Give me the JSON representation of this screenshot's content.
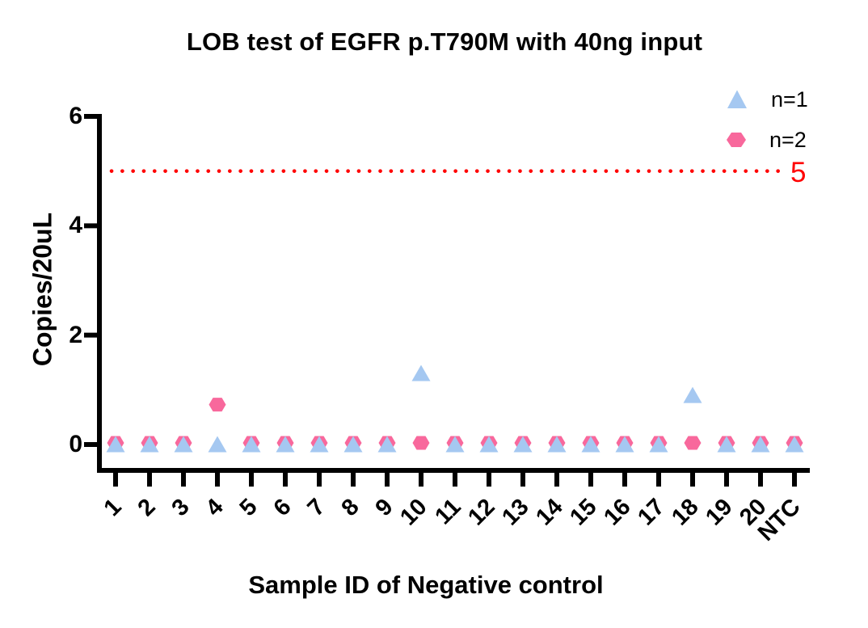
{
  "chart_data": {
    "type": "scatter",
    "title": "LOB test of EGFR p.T790M with 40ng input",
    "xlabel": "Sample ID of Negative control",
    "ylabel": "Copies/20uL",
    "categories": [
      "1",
      "2",
      "3",
      "4",
      "5",
      "6",
      "7",
      "8",
      "9",
      "10",
      "11",
      "12",
      "13",
      "14",
      "15",
      "16",
      "17",
      "18",
      "19",
      "20",
      "NTC"
    ],
    "yticks": [
      0,
      2,
      4,
      6
    ],
    "ylim": [
      0,
      6
    ],
    "grid": false,
    "legend_position": "top-right",
    "axis_color": "#000000",
    "series": [
      {
        "name": "n=1",
        "marker": "triangle",
        "color": "#a5c8f1",
        "values": [
          0,
          0,
          0,
          0,
          0,
          0,
          0,
          0,
          0,
          1.3,
          0,
          0,
          0,
          0,
          0,
          0,
          0,
          0.9,
          0,
          0,
          0
        ]
      },
      {
        "name": "n=2",
        "marker": "hexagon",
        "color": "#f8689c",
        "values": [
          0,
          0,
          0,
          0.7,
          0,
          0,
          0,
          0,
          0,
          0,
          0,
          0,
          0,
          0,
          0,
          0,
          0,
          0,
          0,
          0,
          0
        ]
      }
    ],
    "threshold": {
      "value": 5,
      "label": "5",
      "color": "#ff0000",
      "style": "dotted"
    }
  }
}
